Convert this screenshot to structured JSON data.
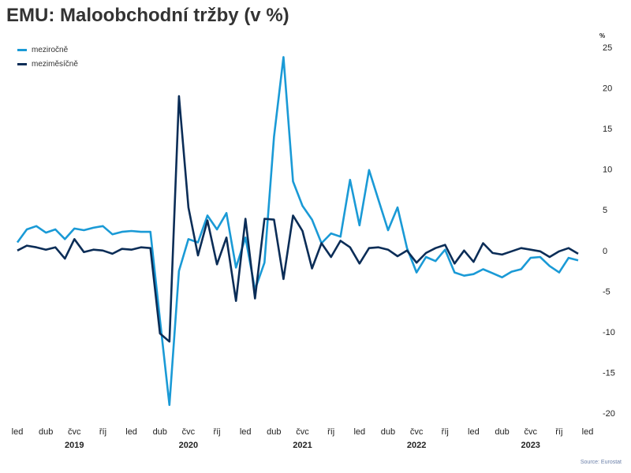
{
  "chart_data": {
    "type": "line",
    "title": "EMU: Maloobchodní tržby (v %)",
    "y_unit": "%",
    "source": "Source: Eurostat",
    "ylim": [
      -20,
      25
    ],
    "y_ticks": [
      25,
      20,
      15,
      10,
      5,
      0,
      -5,
      -10,
      -15,
      -20
    ],
    "x_start": "2019-01",
    "x_tick_labels": [
      "led",
      "dub",
      "čvc",
      "říj",
      "led",
      "dub",
      "čvc",
      "říj",
      "led",
      "dub",
      "čvc",
      "říj",
      "led",
      "dub",
      "čvc",
      "říj",
      "led",
      "dub",
      "čvc",
      "říj",
      "led"
    ],
    "years": [
      "2019",
      "2020",
      "2021",
      "2022",
      "2023"
    ],
    "legend_position": "top-left",
    "series": [
      {
        "name": "meziročně",
        "color": "#1a9ad6",
        "values": [
          1.0,
          2.6,
          3.0,
          2.2,
          2.6,
          1.4,
          2.7,
          2.5,
          2.8,
          3.0,
          2.0,
          2.3,
          2.4,
          2.3,
          2.3,
          -8.5,
          -19.0,
          -2.5,
          1.4,
          1.0,
          4.3,
          2.6,
          4.6,
          -2.1,
          1.6,
          -4.8,
          -1.5,
          14.0,
          23.8,
          8.5,
          5.5,
          3.8,
          0.9,
          2.1,
          1.7,
          8.7,
          3.1,
          9.9,
          6.2,
          2.5,
          5.3,
          0.3,
          -2.7,
          -0.8,
          -1.3,
          0.1,
          -2.7,
          -3.1,
          -2.9,
          -2.3,
          -2.8,
          -3.3,
          -2.6,
          -2.3,
          -0.9,
          -0.8,
          -1.9,
          -2.7,
          -0.9,
          -1.2
        ]
      },
      {
        "name": "meziměsíčně",
        "color": "#0b2d57",
        "values": [
          0.0,
          0.6,
          0.4,
          0.1,
          0.4,
          -1.0,
          1.4,
          -0.2,
          0.1,
          0.0,
          -0.4,
          0.2,
          0.1,
          0.4,
          0.3,
          -10.2,
          -11.2,
          19.0,
          5.3,
          -0.6,
          3.7,
          -1.7,
          1.6,
          -6.2,
          3.9,
          -5.9,
          3.9,
          3.8,
          -3.5,
          4.3,
          2.4,
          -2.2,
          0.9,
          -0.8,
          1.2,
          0.4,
          -1.6,
          0.3,
          0.4,
          0.1,
          -0.7,
          0.0,
          -1.5,
          -0.3,
          0.3,
          0.7,
          -1.6,
          0.0,
          -1.4,
          0.9,
          -0.3,
          -0.5,
          -0.1,
          0.3,
          0.1,
          -0.1,
          -0.8,
          -0.1,
          0.3,
          -0.4
        ]
      }
    ]
  }
}
